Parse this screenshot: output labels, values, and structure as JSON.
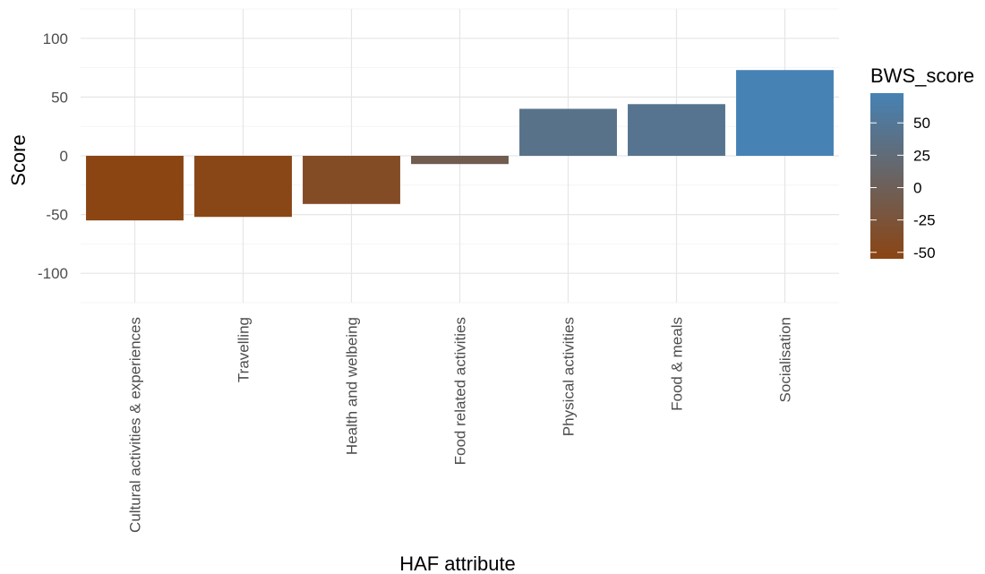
{
  "chart_data": {
    "type": "bar",
    "xlabel": "HAF attribute",
    "ylabel": "Score",
    "categories": [
      "Cultural activities & experiences",
      "Travelling",
      "Health and welbeing",
      "Food related activities",
      "Physical activities",
      "Food & meals",
      "Socialisation"
    ],
    "values": [
      -55,
      -52,
      -41,
      -7,
      40,
      44,
      73
    ],
    "ylim": [
      -125,
      125
    ],
    "yticks": [
      -100,
      -50,
      0,
      50,
      100
    ],
    "grid": true,
    "legend": {
      "title": "BWS_score",
      "placement": "right",
      "ticks": [
        50,
        25,
        0,
        -25,
        -50
      ],
      "range": [
        -55,
        73
      ],
      "low_color": "#8B4513",
      "high_color": "#4682B4"
    }
  }
}
